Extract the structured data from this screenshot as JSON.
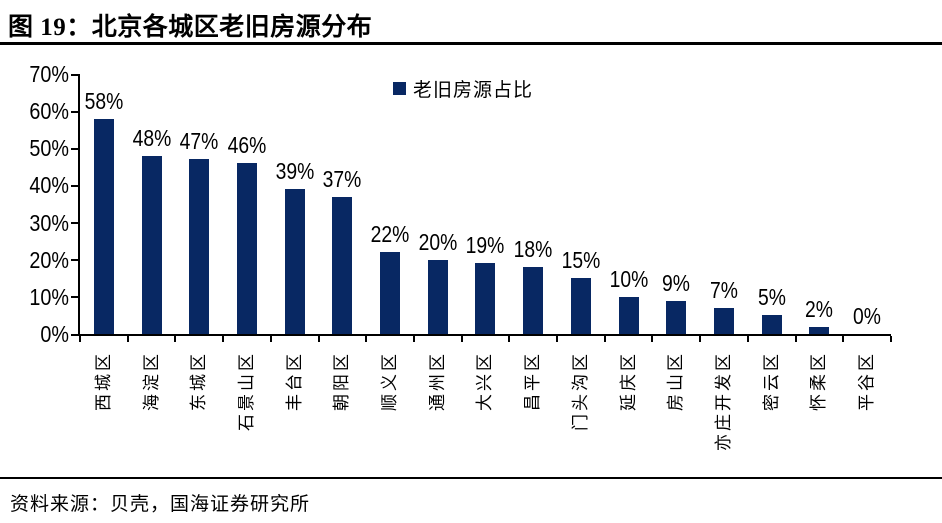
{
  "header": {
    "title": "图 19：北京各城区老旧房源分布"
  },
  "footer": {
    "source": "资料来源：贝壳，国海证券研究所"
  },
  "colors": {
    "bar": "#082863",
    "axis": "#000000",
    "background": "#ffffff",
    "text": "#000000"
  },
  "chart_data": {
    "type": "bar",
    "title": "北京各城区老旧房源分布",
    "legend": [
      {
        "label": "老旧房源占比",
        "color": "#082863"
      }
    ],
    "legend_position": "top-center",
    "categories": [
      "西城区",
      "海淀区",
      "东城区",
      "石景山区",
      "丰台区",
      "朝阳区",
      "顺义区",
      "通州区",
      "大兴区",
      "昌平区",
      "门头沟区",
      "延庆区",
      "房山区",
      "亦庄开发区",
      "密云区",
      "怀柔区",
      "平谷区"
    ],
    "values": [
      58,
      48,
      47,
      46,
      39,
      37,
      22,
      20,
      19,
      18,
      15,
      10,
      9,
      7,
      5,
      2,
      0
    ],
    "value_labels": [
      "58%",
      "48%",
      "47%",
      "46%",
      "39%",
      "37%",
      "22%",
      "20%",
      "19%",
      "18%",
      "15%",
      "10%",
      "9%",
      "7%",
      "5%",
      "2%",
      "0%"
    ],
    "xlabel": "",
    "ylabel": "",
    "ylim": [
      0,
      70
    ],
    "ytick_step": 10,
    "ytick_labels": [
      "0%",
      "10%",
      "20%",
      "30%",
      "40%",
      "50%",
      "60%",
      "70%"
    ],
    "grid": false,
    "bar_color": "#082863"
  }
}
